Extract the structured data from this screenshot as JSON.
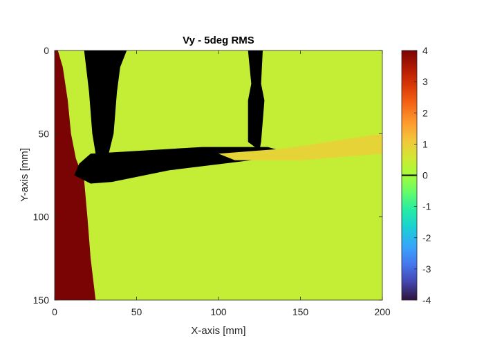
{
  "chart_data": {
    "type": "heatmap",
    "title": "Vy - 5deg RMS",
    "xlabel": "X-axis [mm]",
    "ylabel": "Y-axis [mm]",
    "xlim": [
      0,
      200
    ],
    "ylim": [
      0,
      150
    ],
    "y_reversed": true,
    "x_ticks": [
      "0",
      "50",
      "100",
      "150",
      "200"
    ],
    "y_ticks": [
      "0",
      "50",
      "100",
      "150"
    ],
    "colorbar": {
      "range": [
        -4,
        4
      ],
      "ticks": [
        "4",
        "3",
        "2",
        "1",
        "0",
        "-1",
        "-2",
        "-3",
        "-4"
      ],
      "marker_value": 0
    },
    "background_value": 0.4,
    "regions": [
      {
        "name": "left-edge-high",
        "value": 4,
        "polygon": [
          [
            2,
            0
          ],
          [
            5,
            10
          ],
          [
            8,
            30
          ],
          [
            10,
            50
          ],
          [
            13,
            65
          ],
          [
            18,
            78
          ],
          [
            20,
            100
          ],
          [
            22,
            125
          ],
          [
            25,
            150
          ],
          [
            0,
            150
          ],
          [
            0,
            0
          ]
        ]
      },
      {
        "name": "masked-vane-left",
        "value": null,
        "polygon": [
          [
            18,
            0
          ],
          [
            44,
            0
          ],
          [
            40,
            10
          ],
          [
            38,
            25
          ],
          [
            36,
            50
          ],
          [
            33,
            62
          ],
          [
            25,
            62
          ],
          [
            23,
            50
          ],
          [
            21,
            25
          ]
        ]
      },
      {
        "name": "masked-vane-right",
        "value": null,
        "polygon": [
          [
            118,
            0
          ],
          [
            127,
            0
          ],
          [
            126,
            20
          ],
          [
            128,
            30
          ],
          [
            126,
            55
          ],
          [
            125,
            60
          ],
          [
            118,
            55
          ],
          [
            118,
            30
          ],
          [
            120,
            20
          ]
        ]
      },
      {
        "name": "masked-hub",
        "value": null,
        "polygon": [
          [
            22,
            62
          ],
          [
            90,
            58
          ],
          [
            130,
            58
          ],
          [
            141,
            61
          ],
          [
            120,
            66
          ],
          [
            70,
            72
          ],
          [
            35,
            79
          ],
          [
            22,
            80
          ],
          [
            12,
            75
          ],
          [
            15,
            68
          ]
        ]
      },
      {
        "name": "wake-elevated",
        "value": 0.9,
        "polygon": [
          [
            100,
            62
          ],
          [
            140,
            59
          ],
          [
            200,
            50
          ],
          [
            200,
            62
          ],
          [
            150,
            66
          ],
          [
            110,
            66
          ]
        ]
      }
    ]
  }
}
